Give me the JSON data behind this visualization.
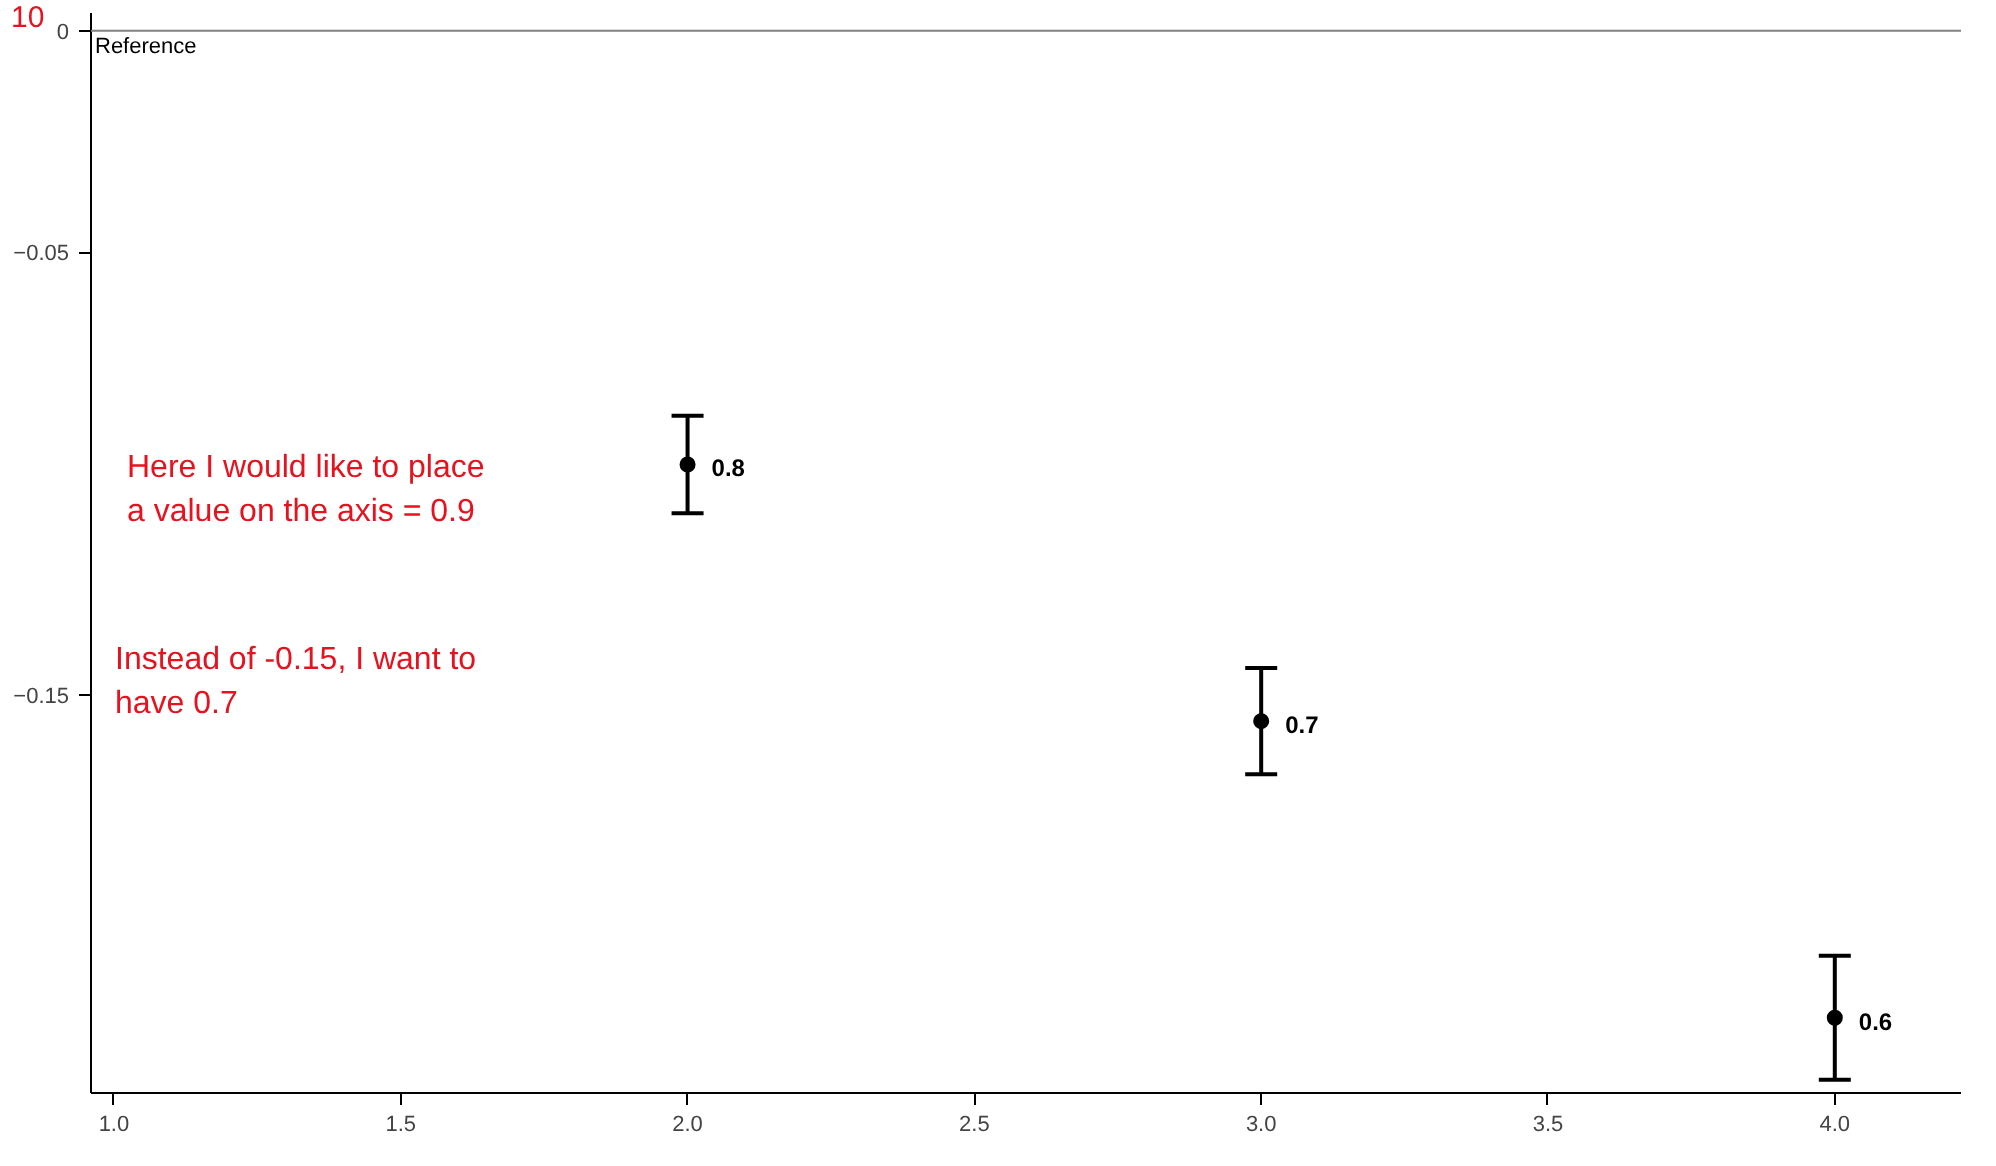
{
  "chart_data": {
    "type": "scatter",
    "x": [
      2.0,
      3.0,
      4.0
    ],
    "series": [
      {
        "color": "#000000",
        "values": [
          -0.098,
          -0.156,
          -0.223
        ],
        "errors": [
          0.011,
          0.012,
          0.014
        ]
      }
    ],
    "marker": "circle",
    "xlim": [
      0.96,
      4.22
    ],
    "ylim": [
      -0.24,
      0.004
    ],
    "xticks": [
      {
        "value": 1.0,
        "label": "1.0"
      },
      1.5,
      {
        "value": 2.0,
        "label": "2.0"
      },
      2.5,
      {
        "value": 3.0,
        "label": "3.0"
      },
      3.5,
      {
        "value": 4.0,
        "label": "4.0"
      }
    ],
    "yticks": [
      0,
      -0.05,
      -0.15
    ],
    "ref_lines": [
      {
        "axis": "y",
        "value": 0,
        "label": "Reference",
        "color": "#808080"
      }
    ],
    "annotations": [
      {
        "text": "0.8",
        "x": 2.0,
        "y": -0.098
      },
      {
        "text": "0.7",
        "x": 3.0,
        "y": -0.156
      },
      {
        "text": "0.6",
        "x": 4.0,
        "y": -0.223
      },
      "Here I would like to place\na value on the axis = 0.9",
      "Instead of -0.15, I want to\nhave 0.7",
      "10"
    ],
    "grid": false
  }
}
